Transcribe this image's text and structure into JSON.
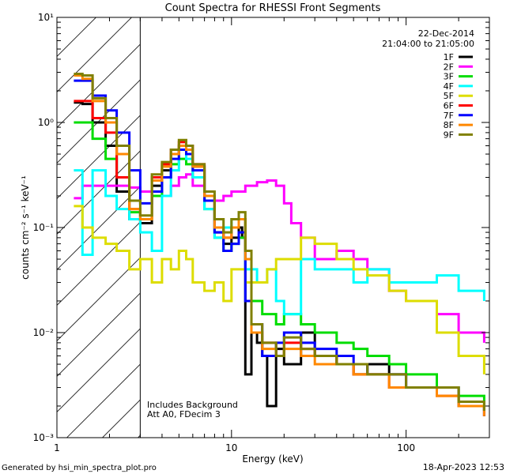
{
  "chart_data": {
    "type": "line",
    "title": "Count Spectra for RHESSI Front Segments",
    "xlabel": "Energy (keV)",
    "ylabel": "counts cm⁻² s⁻¹ keV⁻¹",
    "xscale": "log",
    "yscale": "log",
    "xlim": [
      1,
      300
    ],
    "ylim": [
      0.001,
      10
    ],
    "x_ticks": [
      {
        "value": 1,
        "label": "1"
      },
      {
        "value": 10,
        "label": "10"
      },
      {
        "value": 100,
        "label": "100"
      }
    ],
    "y_ticks": [
      {
        "value": 10,
        "label": "10¹"
      },
      {
        "value": 1,
        "label": "10⁰"
      },
      {
        "value": 0.1,
        "label": "10⁻¹"
      },
      {
        "value": 0.01,
        "label": "10⁻²"
      },
      {
        "value": 0.001,
        "label": "10⁻³"
      }
    ],
    "legend_position": "top-right",
    "date": "22-Dec-2014",
    "time_range": "21:04:00 to 21:05:00",
    "annotations": [
      "Includes Background",
      "Att A0, FDecim 3"
    ],
    "hatched_region_x": [
      1.2,
      3.0
    ],
    "series": [
      {
        "name": "1F",
        "color": "#000000",
        "points": [
          [
            1.25,
            1.55
          ],
          [
            1.4,
            1.5
          ],
          [
            1.6,
            1.0
          ],
          [
            1.9,
            0.6
          ],
          [
            2.2,
            0.22
          ],
          [
            2.6,
            0.12
          ],
          [
            3.0,
            0.11
          ],
          [
            3.5,
            0.25
          ],
          [
            4.0,
            0.35
          ],
          [
            4.5,
            0.5
          ],
          [
            5.0,
            0.6
          ],
          [
            5.5,
            0.5
          ],
          [
            6.0,
            0.38
          ],
          [
            7.0,
            0.18
          ],
          [
            8.0,
            0.09
          ],
          [
            9.0,
            0.07
          ],
          [
            10.0,
            0.08
          ],
          [
            11.0,
            0.1
          ],
          [
            11.5,
            0.08
          ],
          [
            12.0,
            0.004
          ],
          [
            13,
            0.01
          ],
          [
            14,
            0.008
          ],
          [
            15,
            0.006
          ],
          [
            16,
            0.002
          ],
          [
            18,
            0.007
          ],
          [
            20,
            0.005
          ],
          [
            25,
            0.01
          ],
          [
            30,
            0.006
          ],
          [
            40,
            0.005
          ],
          [
            50,
            0.004
          ],
          [
            60,
            0.005
          ],
          [
            80,
            0.004
          ],
          [
            100,
            0.003
          ],
          [
            150,
            0.003
          ],
          [
            200,
            0.002
          ],
          [
            280,
            0.0018
          ]
        ]
      },
      {
        "name": "2F",
        "color": "#ff00ff",
        "points": [
          [
            1.25,
            0.19
          ],
          [
            1.4,
            0.25
          ],
          [
            1.6,
            0.25
          ],
          [
            1.9,
            0.25
          ],
          [
            2.2,
            0.25
          ],
          [
            2.6,
            0.24
          ],
          [
            3.0,
            0.22
          ],
          [
            3.5,
            0.22
          ],
          [
            4.0,
            0.2
          ],
          [
            4.5,
            0.25
          ],
          [
            5.0,
            0.3
          ],
          [
            5.5,
            0.32
          ],
          [
            6.0,
            0.25
          ],
          [
            7.0,
            0.2
          ],
          [
            8.0,
            0.18
          ],
          [
            9.0,
            0.2
          ],
          [
            10.0,
            0.22
          ],
          [
            12.0,
            0.25
          ],
          [
            14,
            0.27
          ],
          [
            16,
            0.28
          ],
          [
            18,
            0.25
          ],
          [
            20,
            0.17
          ],
          [
            22,
            0.11
          ],
          [
            25,
            0.08
          ],
          [
            30,
            0.05
          ],
          [
            40,
            0.06
          ],
          [
            50,
            0.05
          ],
          [
            60,
            0.04
          ],
          [
            80,
            0.025
          ],
          [
            100,
            0.02
          ],
          [
            150,
            0.015
          ],
          [
            200,
            0.01
          ],
          [
            280,
            0.008
          ]
        ]
      },
      {
        "name": "3F",
        "color": "#00dd00",
        "points": [
          [
            1.25,
            1.0
          ],
          [
            1.4,
            1.0
          ],
          [
            1.6,
            0.7
          ],
          [
            1.9,
            0.45
          ],
          [
            2.2,
            0.3
          ],
          [
            2.6,
            0.14
          ],
          [
            3.0,
            0.12
          ],
          [
            3.5,
            0.2
          ],
          [
            4.0,
            0.3
          ],
          [
            4.5,
            0.4
          ],
          [
            5.0,
            0.45
          ],
          [
            5.5,
            0.4
          ],
          [
            6.0,
            0.3
          ],
          [
            7.0,
            0.15
          ],
          [
            8.0,
            0.08
          ],
          [
            9.0,
            0.06
          ],
          [
            10.0,
            0.07
          ],
          [
            11.0,
            0.08
          ],
          [
            12.0,
            0.05
          ],
          [
            13,
            0.02
          ],
          [
            15,
            0.015
          ],
          [
            18,
            0.012
          ],
          [
            20,
            0.015
          ],
          [
            25,
            0.012
          ],
          [
            30,
            0.01
          ],
          [
            40,
            0.008
          ],
          [
            50,
            0.007
          ],
          [
            60,
            0.006
          ],
          [
            80,
            0.005
          ],
          [
            100,
            0.004
          ],
          [
            150,
            0.003
          ],
          [
            200,
            0.0025
          ],
          [
            280,
            0.002
          ]
        ]
      },
      {
        "name": "4F",
        "color": "#00ffff",
        "points": [
          [
            1.25,
            0.35
          ],
          [
            1.4,
            0.055
          ],
          [
            1.6,
            0.35
          ],
          [
            1.9,
            0.2
          ],
          [
            2.2,
            0.15
          ],
          [
            2.6,
            0.12
          ],
          [
            3.0,
            0.09
          ],
          [
            3.5,
            0.06
          ],
          [
            4.0,
            0.2
          ],
          [
            4.5,
            0.35
          ],
          [
            5.0,
            0.55
          ],
          [
            5.5,
            0.45
          ],
          [
            6.0,
            0.3
          ],
          [
            7.0,
            0.15
          ],
          [
            8.0,
            0.08
          ],
          [
            9.0,
            0.1
          ],
          [
            10.0,
            0.12
          ],
          [
            12,
            0.04
          ],
          [
            14,
            0.03
          ],
          [
            16,
            0.04
          ],
          [
            18,
            0.02
          ],
          [
            20,
            0.015
          ],
          [
            25,
            0.05
          ],
          [
            30,
            0.04
          ],
          [
            40,
            0.04
          ],
          [
            50,
            0.03
          ],
          [
            60,
            0.04
          ],
          [
            80,
            0.03
          ],
          [
            100,
            0.03
          ],
          [
            150,
            0.035
          ],
          [
            200,
            0.025
          ],
          [
            280,
            0.02
          ]
        ]
      },
      {
        "name": "5F",
        "color": "#dddd00",
        "points": [
          [
            1.25,
            0.16
          ],
          [
            1.4,
            0.1
          ],
          [
            1.6,
            0.08
          ],
          [
            1.9,
            0.07
          ],
          [
            2.2,
            0.06
          ],
          [
            2.6,
            0.04
          ],
          [
            3.0,
            0.05
          ],
          [
            3.5,
            0.03
          ],
          [
            4.0,
            0.05
          ],
          [
            4.5,
            0.04
          ],
          [
            5.0,
            0.06
          ],
          [
            5.5,
            0.05
          ],
          [
            6.0,
            0.03
          ],
          [
            7.0,
            0.025
          ],
          [
            8.0,
            0.03
          ],
          [
            9.0,
            0.02
          ],
          [
            10.0,
            0.04
          ],
          [
            12,
            0.03
          ],
          [
            14,
            0.03
          ],
          [
            16,
            0.04
          ],
          [
            18,
            0.05
          ],
          [
            20,
            0.05
          ],
          [
            25,
            0.08
          ],
          [
            30,
            0.07
          ],
          [
            40,
            0.05
          ],
          [
            50,
            0.04
          ],
          [
            60,
            0.035
          ],
          [
            80,
            0.025
          ],
          [
            100,
            0.02
          ],
          [
            150,
            0.01
          ],
          [
            200,
            0.006
          ],
          [
            280,
            0.004
          ]
        ]
      },
      {
        "name": "6F",
        "color": "#ff0000",
        "points": [
          [
            1.25,
            1.6
          ],
          [
            1.4,
            1.6
          ],
          [
            1.6,
            1.1
          ],
          [
            1.9,
            0.8
          ],
          [
            2.2,
            0.3
          ],
          [
            2.6,
            0.15
          ],
          [
            3.0,
            0.12
          ],
          [
            3.5,
            0.3
          ],
          [
            4.0,
            0.4
          ],
          [
            4.5,
            0.55
          ],
          [
            5.0,
            0.65
          ],
          [
            5.5,
            0.6
          ],
          [
            6.0,
            0.4
          ],
          [
            7.0,
            0.2
          ],
          [
            8.0,
            0.1
          ],
          [
            9.0,
            0.08
          ],
          [
            10.0,
            0.1
          ],
          [
            11.0,
            0.12
          ],
          [
            12.0,
            0.06
          ],
          [
            13,
            0.01
          ],
          [
            15,
            0.008
          ],
          [
            18,
            0.006
          ],
          [
            20,
            0.008
          ],
          [
            25,
            0.007
          ],
          [
            30,
            0.006
          ],
          [
            40,
            0.005
          ],
          [
            50,
            0.004
          ],
          [
            60,
            0.004
          ],
          [
            80,
            0.003
          ],
          [
            100,
            0.003
          ],
          [
            150,
            0.0025
          ],
          [
            200,
            0.002
          ],
          [
            280,
            0.0016
          ]
        ]
      },
      {
        "name": "7F",
        "color": "#0000ff",
        "points": [
          [
            1.25,
            2.5
          ],
          [
            1.4,
            2.5
          ],
          [
            1.6,
            1.8
          ],
          [
            1.9,
            1.3
          ],
          [
            2.2,
            0.8
          ],
          [
            2.6,
            0.35
          ],
          [
            3.0,
            0.17
          ],
          [
            3.5,
            0.22
          ],
          [
            4.0,
            0.3
          ],
          [
            4.5,
            0.45
          ],
          [
            5.0,
            0.55
          ],
          [
            5.5,
            0.5
          ],
          [
            6.0,
            0.35
          ],
          [
            7.0,
            0.18
          ],
          [
            8.0,
            0.09
          ],
          [
            9.0,
            0.06
          ],
          [
            10.0,
            0.07
          ],
          [
            11.0,
            0.09
          ],
          [
            12.0,
            0.02
          ],
          [
            13,
            0.012
          ],
          [
            15,
            0.006
          ],
          [
            18,
            0.008
          ],
          [
            20,
            0.01
          ],
          [
            25,
            0.008
          ],
          [
            30,
            0.007
          ],
          [
            40,
            0.006
          ],
          [
            50,
            0.005
          ],
          [
            60,
            0.004
          ],
          [
            80,
            0.004
          ],
          [
            100,
            0.003
          ],
          [
            150,
            0.003
          ],
          [
            200,
            0.002
          ],
          [
            280,
            0.0016
          ]
        ]
      },
      {
        "name": "8F",
        "color": "#ff8800",
        "points": [
          [
            1.25,
            2.8
          ],
          [
            1.4,
            2.6
          ],
          [
            1.6,
            1.6
          ],
          [
            1.9,
            1.0
          ],
          [
            2.2,
            0.5
          ],
          [
            2.6,
            0.15
          ],
          [
            3.0,
            0.12
          ],
          [
            3.5,
            0.28
          ],
          [
            4.0,
            0.38
          ],
          [
            4.5,
            0.5
          ],
          [
            5.0,
            0.6
          ],
          [
            5.5,
            0.55
          ],
          [
            6.0,
            0.38
          ],
          [
            7.0,
            0.2
          ],
          [
            8.0,
            0.1
          ],
          [
            9.0,
            0.08
          ],
          [
            10.0,
            0.1
          ],
          [
            11.0,
            0.12
          ],
          [
            12.0,
            0.05
          ],
          [
            13,
            0.01
          ],
          [
            15,
            0.007
          ],
          [
            18,
            0.006
          ],
          [
            20,
            0.007
          ],
          [
            25,
            0.006
          ],
          [
            30,
            0.005
          ],
          [
            40,
            0.005
          ],
          [
            50,
            0.004
          ],
          [
            60,
            0.004
          ],
          [
            80,
            0.003
          ],
          [
            100,
            0.003
          ],
          [
            150,
            0.0025
          ],
          [
            200,
            0.002
          ],
          [
            280,
            0.0016
          ]
        ]
      },
      {
        "name": "9F",
        "color": "#808000",
        "points": [
          [
            1.25,
            2.9
          ],
          [
            1.4,
            2.8
          ],
          [
            1.6,
            1.7
          ],
          [
            1.9,
            1.1
          ],
          [
            2.2,
            0.6
          ],
          [
            2.6,
            0.18
          ],
          [
            3.0,
            0.13
          ],
          [
            3.5,
            0.32
          ],
          [
            4.0,
            0.42
          ],
          [
            4.5,
            0.55
          ],
          [
            5.0,
            0.68
          ],
          [
            5.5,
            0.6
          ],
          [
            6.0,
            0.4
          ],
          [
            7.0,
            0.22
          ],
          [
            8.0,
            0.12
          ],
          [
            9.0,
            0.09
          ],
          [
            10.0,
            0.12
          ],
          [
            11.0,
            0.14
          ],
          [
            12.0,
            0.06
          ],
          [
            13,
            0.012
          ],
          [
            15,
            0.008
          ],
          [
            18,
            0.006
          ],
          [
            20,
            0.009
          ],
          [
            25,
            0.007
          ],
          [
            30,
            0.006
          ],
          [
            40,
            0.005
          ],
          [
            50,
            0.005
          ],
          [
            60,
            0.004
          ],
          [
            80,
            0.004
          ],
          [
            100,
            0.003
          ],
          [
            150,
            0.003
          ],
          [
            200,
            0.0022
          ],
          [
            280,
            0.0018
          ]
        ]
      }
    ]
  },
  "footer": {
    "generated_by": "Generated by hsi_min_spectra_plot.pro",
    "timestamp": "18-Apr-2023 12:53"
  }
}
